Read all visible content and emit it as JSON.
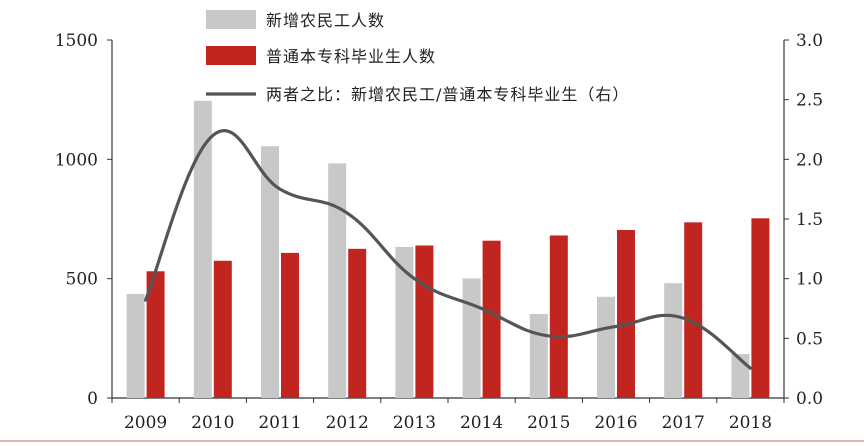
{
  "chart_data": {
    "type": "bar",
    "categories": [
      "2009",
      "2010",
      "2011",
      "2012",
      "2013",
      "2014",
      "2015",
      "2016",
      "2017",
      "2018"
    ],
    "series": [
      {
        "name": "新增农民工人数",
        "kind": "bar",
        "axis": "left",
        "color": "#c8c8c8",
        "values": [
          436,
          1245,
          1055,
          983,
          633,
          501,
          352,
          424,
          481,
          184
        ]
      },
      {
        "name": "普通本专科毕业生人数",
        "kind": "bar",
        "axis": "left",
        "color": "#c0251f",
        "values": [
          531,
          575,
          608,
          625,
          639,
          659,
          681,
          704,
          736,
          753
        ]
      },
      {
        "name": "两者之比：新增农民工/普通本专科毕业生（右）",
        "kind": "line",
        "axis": "right",
        "color": "#555555",
        "values": [
          0.82,
          2.2,
          1.75,
          1.55,
          1.0,
          0.75,
          0.52,
          0.6,
          0.67,
          0.25
        ]
      }
    ],
    "y_left": {
      "min": 0,
      "max": 1500,
      "ticks": [
        "0",
        "500",
        "1000",
        "1500"
      ]
    },
    "y_right": {
      "min": 0,
      "max": 3.0,
      "ticks": [
        "0.0",
        "0.5",
        "1.0",
        "1.5",
        "2.0",
        "2.5",
        "3.0"
      ]
    },
    "grid": false,
    "legend_position": "top"
  }
}
